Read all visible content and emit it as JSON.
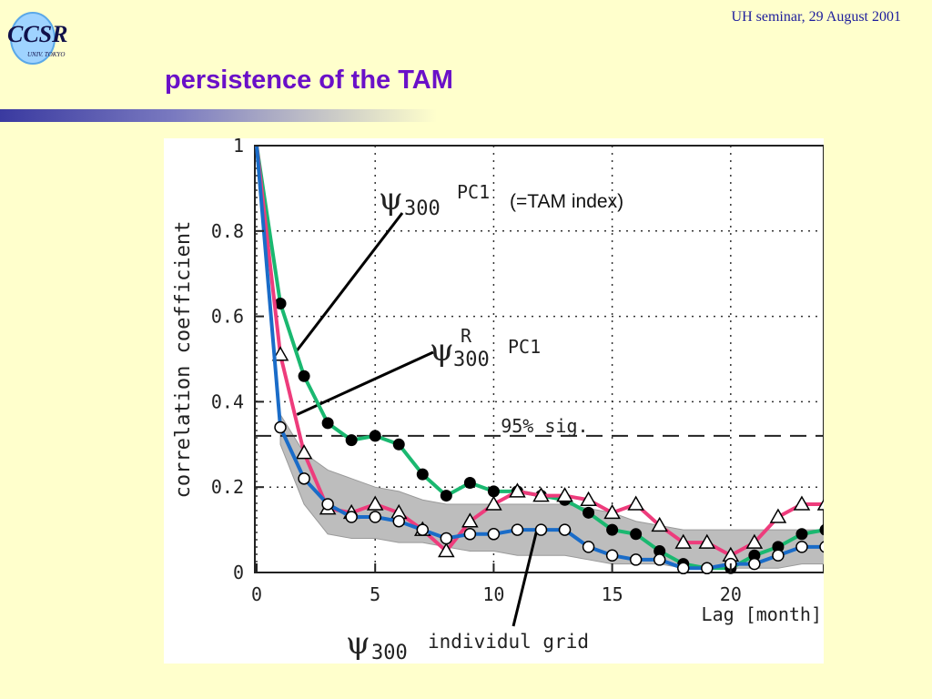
{
  "header": {
    "logo_text": "CCSR",
    "logo_subtext": "UNIV. TOKYO",
    "note": "UH seminar, 29 August 2001",
    "title": "persistence of the TAM"
  },
  "chart_data": {
    "type": "line",
    "xlabel": "Lag [month]",
    "ylabel": "correlation coefficient",
    "xlim": [
      0,
      24
    ],
    "ylim": [
      0,
      1
    ],
    "xticks": [
      "0",
      "5",
      "10",
      "15",
      "20"
    ],
    "yticks": [
      "0",
      "0.2",
      "0.4",
      "0.6",
      "0.8",
      "1"
    ],
    "grid": "dotted",
    "significance": {
      "value": 0.32,
      "label": "95% sig."
    },
    "x": [
      0,
      1,
      2,
      3,
      4,
      5,
      6,
      7,
      8,
      9,
      10,
      11,
      12,
      13,
      14,
      15,
      16,
      17,
      18,
      19,
      20,
      21,
      22,
      23,
      24
    ],
    "series": [
      {
        "name": "PC1",
        "color": "#1ab870",
        "marker": "filled-circle",
        "values": [
          1.0,
          0.63,
          0.46,
          0.35,
          0.31,
          0.32,
          0.3,
          0.23,
          0.18,
          0.21,
          0.19,
          0.19,
          0.18,
          0.17,
          0.14,
          0.1,
          0.09,
          0.05,
          0.02,
          0.01,
          0.01,
          0.04,
          0.06,
          0.09,
          0.1
        ]
      },
      {
        "name": "PC1",
        "color": "#ee3c7c",
        "marker": "triangle",
        "values": [
          1.0,
          0.51,
          0.28,
          0.15,
          0.14,
          0.16,
          0.14,
          0.1,
          0.05,
          0.12,
          0.16,
          0.19,
          0.18,
          0.18,
          0.17,
          0.14,
          0.16,
          0.11,
          0.07,
          0.07,
          0.04,
          0.07,
          0.13,
          0.16,
          0.16
        ]
      },
      {
        "name": "individul grid",
        "color": "#1a6cc8",
        "marker": "open-circle",
        "values": [
          1.0,
          0.34,
          0.22,
          0.16,
          0.13,
          0.13,
          0.12,
          0.1,
          0.08,
          0.09,
          0.09,
          0.1,
          0.1,
          0.1,
          0.06,
          0.04,
          0.03,
          0.03,
          0.01,
          0.01,
          0.02,
          0.02,
          0.04,
          0.06,
          0.06
        ]
      }
    ],
    "band": {
      "x": [
        1,
        2,
        3,
        4,
        5,
        6,
        7,
        8,
        9,
        10,
        11,
        12,
        13,
        14,
        15,
        16,
        17,
        18,
        19,
        20,
        21,
        22,
        23,
        24
      ],
      "upper": [
        0.37,
        0.28,
        0.24,
        0.22,
        0.2,
        0.19,
        0.17,
        0.16,
        0.16,
        0.16,
        0.16,
        0.16,
        0.16,
        0.15,
        0.14,
        0.12,
        0.11,
        0.1,
        0.1,
        0.1,
        0.1,
        0.1,
        0.1,
        0.1
      ],
      "lower": [
        0.3,
        0.16,
        0.09,
        0.08,
        0.08,
        0.07,
        0.07,
        0.06,
        0.05,
        0.05,
        0.04,
        0.04,
        0.04,
        0.03,
        0.02,
        0.02,
        0.02,
        0.01,
        0.01,
        0.01,
        0.01,
        0.01,
        0.02,
        0.02
      ]
    },
    "annotations": {
      "psi1": {
        "symbol": "ψ",
        "sub": "300",
        "sup": "PC1"
      },
      "psi1_note": "(=TAM index)",
      "psi2": {
        "symbol": "ψ",
        "sub": "300",
        "sup": "R",
        "suffix": "PC1"
      },
      "psi3": {
        "symbol": "ψ",
        "sub": "300",
        "suffix": "individul grid"
      }
    }
  }
}
